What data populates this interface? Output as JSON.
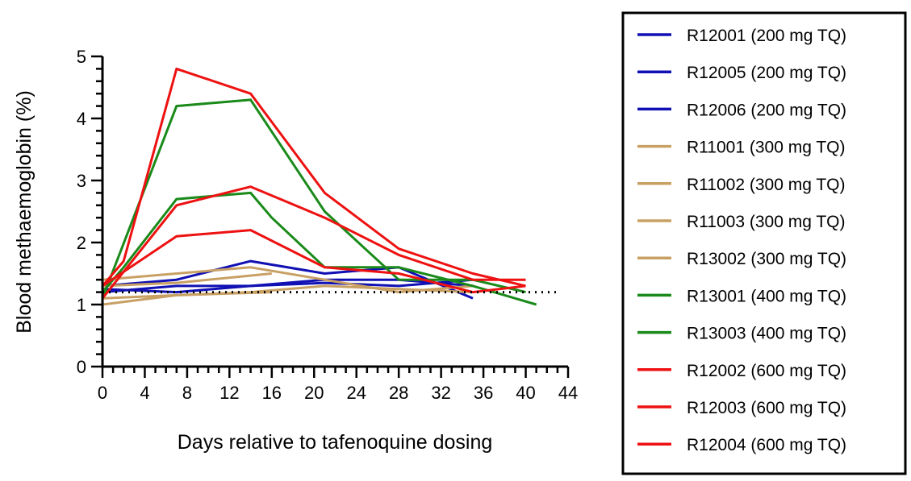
{
  "chart_data": {
    "type": "line",
    "xlabel": "Days relative to tafenoquine dosing",
    "ylabel": "Blood methaemoglobin (%)",
    "xlim": [
      0,
      44
    ],
    "ylim": [
      0,
      5
    ],
    "x_ticks": [
      0,
      4,
      8,
      12,
      16,
      20,
      24,
      28,
      32,
      36,
      40,
      44
    ],
    "y_ticks": [
      0,
      1,
      2,
      3,
      4,
      5
    ],
    "x_minor_step": 1,
    "y_minor_step": 0.2,
    "reference_line": {
      "y": 1.2,
      "style": "dotted"
    },
    "grid": false,
    "legend_position": "right",
    "colors": {
      "200": "#1010b4",
      "300": "#c8a064",
      "400": "#1a8a1a",
      "600": "#ee1111"
    },
    "series": [
      {
        "name": "R12001 (200 mg TQ)",
        "dose": "200",
        "points": [
          [
            0,
            1.3
          ],
          [
            7,
            1.4
          ],
          [
            14,
            1.7
          ],
          [
            21,
            1.5
          ],
          [
            28,
            1.6
          ],
          [
            35,
            1.1
          ]
        ]
      },
      {
        "name": "R12005 (200 mg TQ)",
        "dose": "200",
        "points": [
          [
            0,
            1.2
          ],
          [
            7,
            1.3
          ],
          [
            14,
            1.3
          ],
          [
            21,
            1.4
          ],
          [
            28,
            1.4
          ],
          [
            35,
            1.3
          ]
        ]
      },
      {
        "name": "R12006 (200 mg TQ)",
        "dose": "200",
        "points": [
          [
            0,
            1.25
          ],
          [
            7,
            1.2
          ],
          [
            14,
            1.3
          ],
          [
            21,
            1.35
          ],
          [
            28,
            1.3
          ],
          [
            35,
            1.4
          ]
        ]
      },
      {
        "name": "R11001 (300 mg TQ)",
        "dose": "300",
        "points": [
          [
            0,
            1.3
          ],
          [
            7,
            1.35
          ],
          [
            16,
            1.5
          ]
        ]
      },
      {
        "name": "R11002 (300 mg TQ)",
        "dose": "300",
        "points": [
          [
            0,
            1.1
          ],
          [
            7,
            1.15
          ],
          [
            16,
            1.2
          ]
        ]
      },
      {
        "name": "R11003 (300 mg TQ)",
        "dose": "300",
        "points": [
          [
            0,
            1.4
          ],
          [
            7,
            1.5
          ],
          [
            14,
            1.6
          ],
          [
            21,
            1.4
          ],
          [
            28,
            1.2
          ],
          [
            35,
            1.3
          ]
        ]
      },
      {
        "name": "R13002 (300 mg TQ)",
        "dose": "300",
        "points": [
          [
            0,
            1.0
          ],
          [
            7,
            1.15
          ],
          [
            14,
            1.2
          ],
          [
            21,
            1.3
          ],
          [
            28,
            1.25
          ],
          [
            35,
            1.2
          ]
        ]
      },
      {
        "name": "R13001 (400 mg TQ)",
        "dose": "400",
        "points": [
          [
            0,
            1.2
          ],
          [
            2,
            1.6
          ],
          [
            7,
            2.7
          ],
          [
            14,
            2.8
          ],
          [
            16,
            2.4
          ],
          [
            21,
            1.6
          ],
          [
            28,
            1.6
          ],
          [
            35,
            1.3
          ],
          [
            41,
            1.0
          ]
        ]
      },
      {
        "name": "R13003 (400 mg TQ)",
        "dose": "400",
        "points": [
          [
            0,
            1.1
          ],
          [
            7,
            4.2
          ],
          [
            14,
            4.3
          ],
          [
            21,
            2.5
          ],
          [
            28,
            1.4
          ],
          [
            35,
            1.4
          ],
          [
            40,
            1.2
          ]
        ]
      },
      {
        "name": "R12002 (600 mg TQ)",
        "dose": "600",
        "points": [
          [
            0,
            1.3
          ],
          [
            2,
            1.7
          ],
          [
            7,
            4.8
          ],
          [
            14,
            4.4
          ],
          [
            21,
            2.8
          ],
          [
            28,
            1.9
          ],
          [
            35,
            1.5
          ],
          [
            40,
            1.3
          ]
        ]
      },
      {
        "name": "R12003 (600 mg TQ)",
        "dose": "600",
        "points": [
          [
            0,
            1.1
          ],
          [
            7,
            2.6
          ],
          [
            14,
            2.9
          ],
          [
            21,
            2.4
          ],
          [
            28,
            1.8
          ],
          [
            35,
            1.4
          ],
          [
            40,
            1.4
          ]
        ]
      },
      {
        "name": "R12004 (600 mg TQ)",
        "dose": "600",
        "points": [
          [
            0,
            1.3
          ],
          [
            7,
            2.1
          ],
          [
            14,
            2.2
          ],
          [
            21,
            1.6
          ],
          [
            28,
            1.5
          ],
          [
            35,
            1.2
          ],
          [
            40,
            1.3
          ]
        ]
      }
    ]
  }
}
